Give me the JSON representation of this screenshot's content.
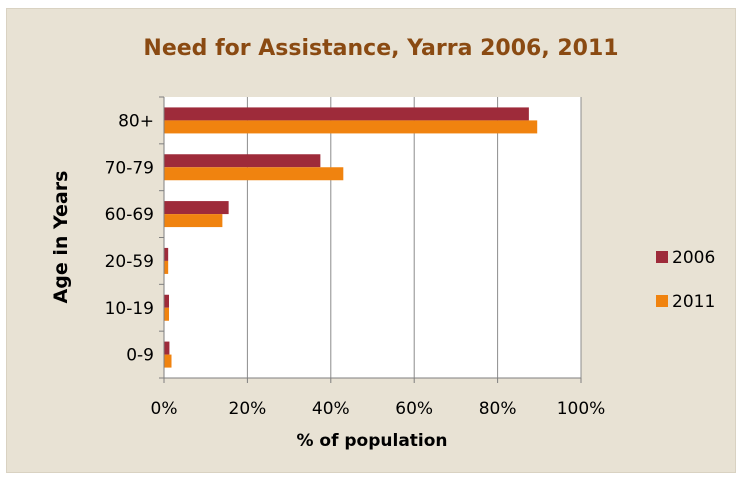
{
  "chart_data": {
    "type": "bar",
    "orientation": "horizontal",
    "title": "Need for Assistance, Yarra 2006, 2011",
    "xlabel": "% of population",
    "ylabel": "Age in Years",
    "categories": [
      "80+",
      "70-79",
      "60-69",
      "20-59",
      "10-19",
      "0-9"
    ],
    "xlim": [
      0,
      100
    ],
    "x_ticks": [
      "0%",
      "20%",
      "40%",
      "60%",
      "80%",
      "100%"
    ],
    "series": [
      {
        "name": "2006",
        "color": "#9e2b3a",
        "values": [
          87.5,
          37.5,
          15.5,
          1.0,
          1.2,
          1.3
        ]
      },
      {
        "name": "2011",
        "color": "#f0830f",
        "values": [
          89.5,
          43.0,
          14.0,
          1.0,
          1.2,
          1.8
        ]
      }
    ],
    "grid": "vertical",
    "legend": "right"
  },
  "colors": {
    "background": "#e8e2d4",
    "plot_area": "#ffffff",
    "title": "#8a4a12",
    "gridline": "#8c8c8c"
  }
}
